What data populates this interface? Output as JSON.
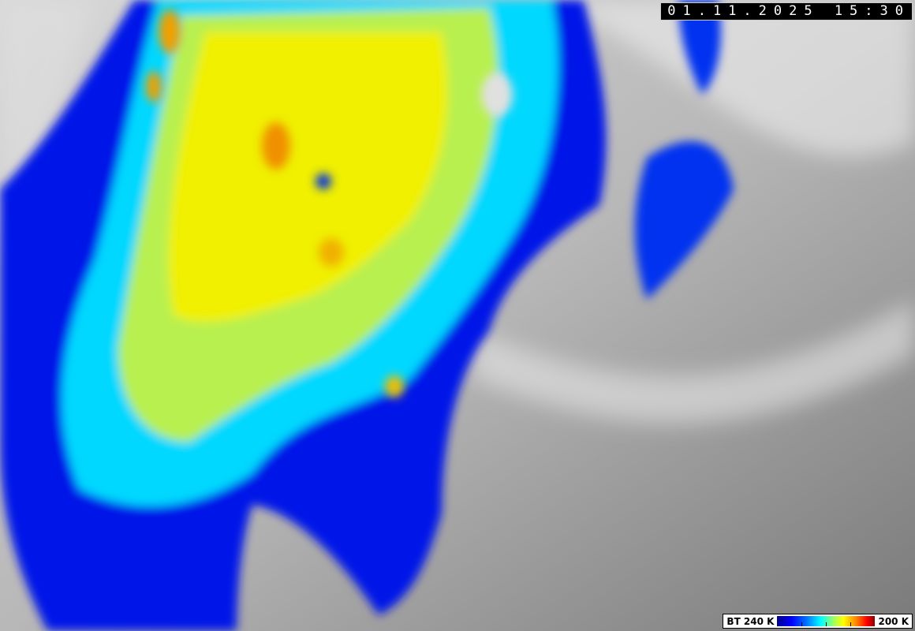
{
  "timestamp": "01.11.2025 15:30",
  "legend": {
    "label_left": "BT 240 K",
    "label_right": "200 K",
    "colors": [
      "#00008a",
      "#0000ff",
      "#00ffff",
      "#ffff00",
      "#ff0000",
      "#8a0000"
    ]
  }
}
